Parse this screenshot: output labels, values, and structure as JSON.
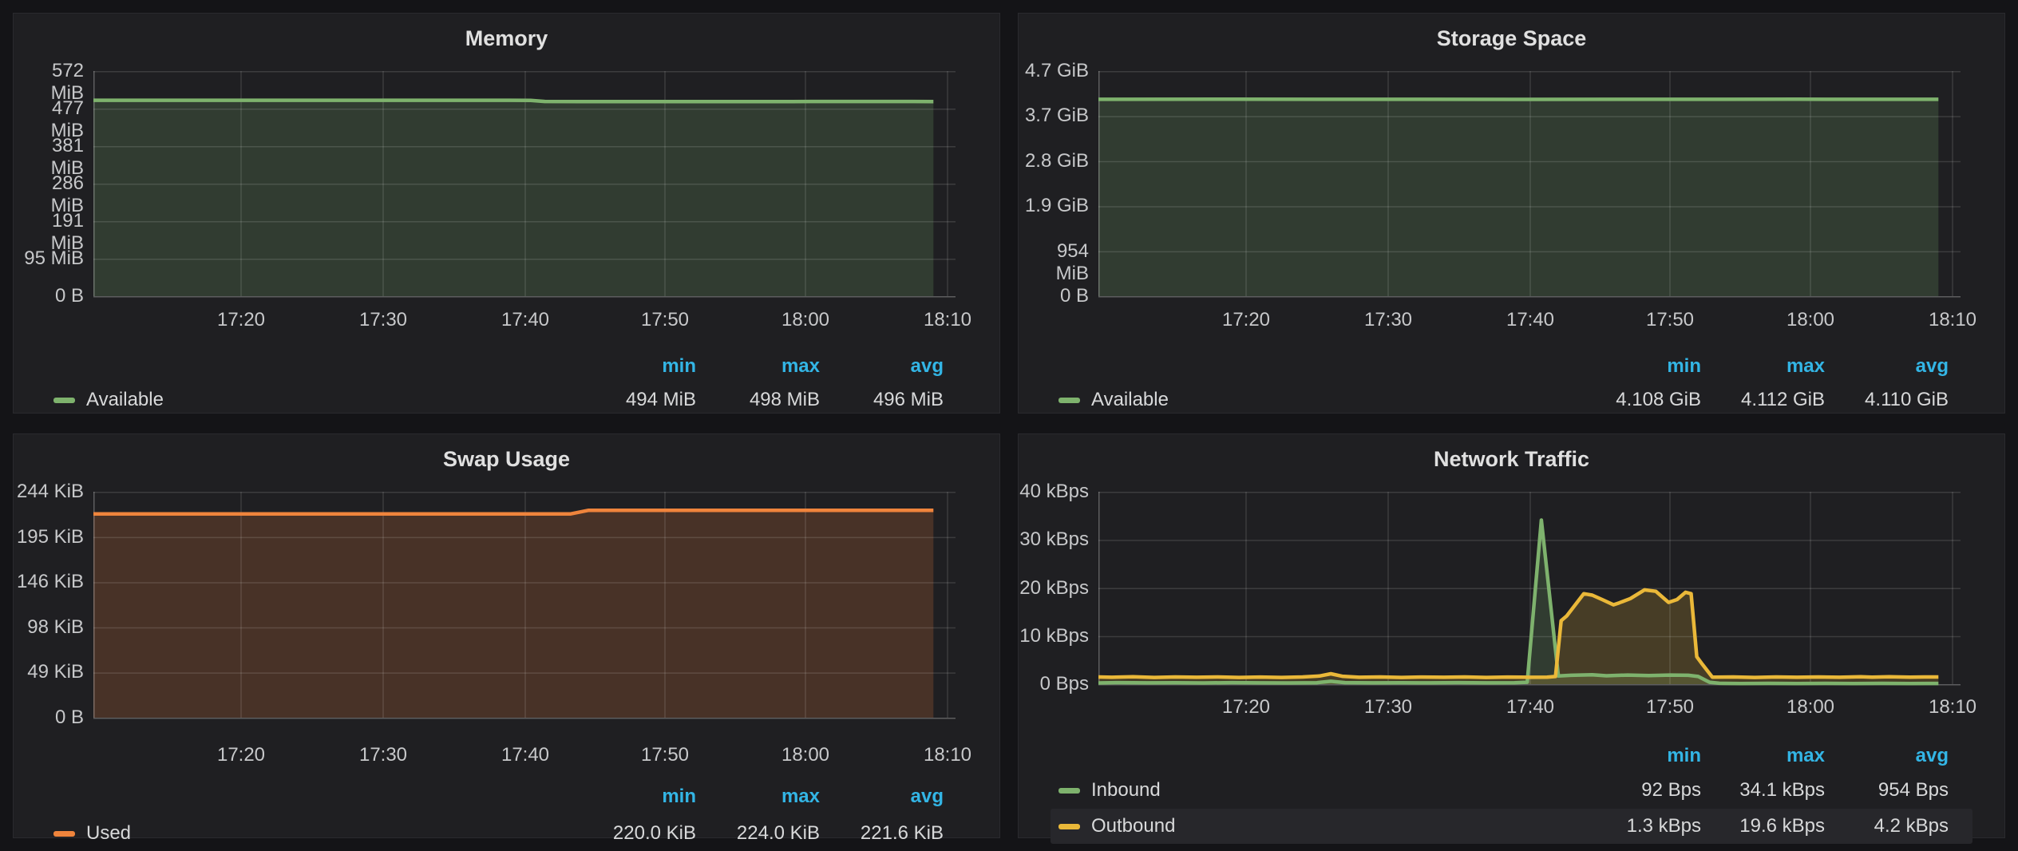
{
  "stats_header": [
    "min",
    "max",
    "avg"
  ],
  "colors": {
    "green": "#7eb26d",
    "orange": "#ef843c",
    "yellow": "#eab839",
    "header_blue": "#33b5e5",
    "panel_bg": "#1f1f22",
    "page_bg": "#141417",
    "axis_text": "#c7c8ca",
    "value_text": "#d8d9da"
  },
  "x_ticks": [
    "17:20",
    "17:30",
    "17:40",
    "17:50",
    "18:00",
    "18:10"
  ],
  "chart_data": [
    {
      "type": "area",
      "title": "Memory",
      "ylabel": "bytes",
      "ylim": [
        0,
        572
      ],
      "y_tick_labels": [
        "572 MiB",
        "477 MiB",
        "381 MiB",
        "286 MiB",
        "191 MiB",
        "95 MiB",
        "0 B"
      ],
      "x_tick_labels": [
        "17:20",
        "17:30",
        "17:40",
        "17:50",
        "18:00",
        "18:10"
      ],
      "legend_position": "bottom-left",
      "grid": true,
      "series": [
        {
          "name": "Available",
          "color": "#7eb26d",
          "unit": "MiB",
          "min": "494 MiB",
          "max": "498 MiB",
          "avg": "496 MiB",
          "highlight": false,
          "points": [
            [
              0,
              497.8
            ],
            [
              5,
              497.8
            ],
            [
              10,
              497.7
            ],
            [
              15,
              497.8
            ],
            [
              20,
              497.8
            ],
            [
              25,
              497.7
            ],
            [
              30,
              497.8
            ],
            [
              31.5,
              497.6
            ],
            [
              32.5,
              494.8
            ],
            [
              35,
              494.6
            ],
            [
              40,
              494.5
            ],
            [
              45,
              494.6
            ],
            [
              50,
              494.5
            ],
            [
              55,
              494.7
            ],
            [
              60,
              494.6
            ]
          ]
        }
      ]
    },
    {
      "type": "area",
      "title": "Storage Space",
      "ylabel": "bytes",
      "ylim": [
        0,
        4.7
      ],
      "y_tick_labels": [
        "4.7 GiB",
        "3.7 GiB",
        "2.8 GiB",
        "1.9 GiB",
        "954 MiB",
        "0 B"
      ],
      "x_tick_labels": [
        "17:20",
        "17:30",
        "17:40",
        "17:50",
        "18:00",
        "18:10"
      ],
      "legend_position": "bottom-left",
      "grid": true,
      "series": [
        {
          "name": "Available",
          "color": "#7eb26d",
          "unit": "GiB",
          "min": "4.108 GiB",
          "max": "4.112 GiB",
          "avg": "4.110 GiB",
          "highlight": false,
          "points": [
            [
              0,
              4.11
            ],
            [
              10,
              4.111
            ],
            [
              20,
              4.11
            ],
            [
              30,
              4.109
            ],
            [
              40,
              4.11
            ],
            [
              50,
              4.111
            ],
            [
              60,
              4.11
            ]
          ]
        }
      ]
    },
    {
      "type": "area",
      "title": "Swap Usage",
      "ylabel": "bytes",
      "ylim": [
        0,
        244
      ],
      "y_tick_labels": [
        "244 KiB",
        "195 KiB",
        "146 KiB",
        "98 KiB",
        "49 KiB",
        "0 B"
      ],
      "x_tick_labels": [
        "17:20",
        "17:30",
        "17:40",
        "17:50",
        "18:00",
        "18:10"
      ],
      "legend_position": "bottom-left",
      "grid": true,
      "series": [
        {
          "name": "Used",
          "color": "#ef843c",
          "unit": "KiB",
          "min": "220.0 KiB",
          "max": "224.0 KiB",
          "avg": "221.6 KiB",
          "highlight": false,
          "points": [
            [
              0,
              220
            ],
            [
              10,
              220
            ],
            [
              20,
              220
            ],
            [
              30,
              220
            ],
            [
              34.3,
              220
            ],
            [
              35.6,
              224
            ],
            [
              40,
              224
            ],
            [
              50,
              224
            ],
            [
              60,
              224
            ]
          ]
        }
      ]
    },
    {
      "type": "area",
      "title": "Network Traffic",
      "ylabel": "Bps",
      "ylim": [
        0,
        40
      ],
      "y_tick_labels": [
        "40 kBps",
        "30 kBps",
        "20 kBps",
        "10 kBps",
        "0 Bps"
      ],
      "x_tick_labels": [
        "17:20",
        "17:30",
        "17:40",
        "17:50",
        "18:00",
        "18:10"
      ],
      "legend_position": "bottom-left",
      "grid": true,
      "series": [
        {
          "name": "Inbound",
          "color": "#7eb26d",
          "unit": "kBps",
          "min": "92 Bps",
          "max": "34.1 kBps",
          "avg": "954 Bps",
          "highlight": false,
          "points": [
            [
              0,
              0.25
            ],
            [
              2,
              0.32
            ],
            [
              4,
              0.26
            ],
            [
              6,
              0.3
            ],
            [
              8,
              0.25
            ],
            [
              10,
              0.32
            ],
            [
              12,
              0.27
            ],
            [
              14,
              0.25
            ],
            [
              16,
              0.3
            ],
            [
              17,
              0.6
            ],
            [
              18,
              0.32
            ],
            [
              20,
              0.26
            ],
            [
              22,
              0.3
            ],
            [
              24,
              0.27
            ],
            [
              26,
              0.32
            ],
            [
              28,
              0.26
            ],
            [
              30,
              0.3
            ],
            [
              30.9,
              0.4
            ],
            [
              31.9,
              34.1
            ],
            [
              33.1,
              1.7
            ],
            [
              34,
              1.85
            ],
            [
              35.5,
              1.95
            ],
            [
              36.5,
              1.75
            ],
            [
              38,
              1.9
            ],
            [
              39.5,
              1.8
            ],
            [
              41,
              1.9
            ],
            [
              42.3,
              1.85
            ],
            [
              43,
              1.6
            ],
            [
              43.8,
              0.4
            ],
            [
              44.5,
              0.18
            ],
            [
              46,
              0.14
            ],
            [
              48,
              0.17
            ],
            [
              50,
              0.14
            ],
            [
              52,
              0.17
            ],
            [
              54,
              0.14
            ],
            [
              56,
              0.17
            ],
            [
              58,
              0.14
            ],
            [
              60,
              0.15
            ]
          ]
        },
        {
          "name": "Outbound",
          "color": "#eab839",
          "unit": "kBps",
          "min": "1.3 kBps",
          "max": "19.6 kBps",
          "avg": "4.2 kBps",
          "highlight": true,
          "points": [
            [
              0,
              1.5
            ],
            [
              1.5,
              1.42
            ],
            [
              3,
              1.52
            ],
            [
              4.5,
              1.4
            ],
            [
              6,
              1.5
            ],
            [
              7.5,
              1.42
            ],
            [
              9,
              1.5
            ],
            [
              10.5,
              1.4
            ],
            [
              12,
              1.48
            ],
            [
              13.5,
              1.4
            ],
            [
              15,
              1.5
            ],
            [
              16.2,
              1.7
            ],
            [
              17,
              2.15
            ],
            [
              17.8,
              1.65
            ],
            [
              19,
              1.42
            ],
            [
              20.5,
              1.5
            ],
            [
              22,
              1.4
            ],
            [
              23.5,
              1.48
            ],
            [
              25,
              1.42
            ],
            [
              26.5,
              1.5
            ],
            [
              28,
              1.4
            ],
            [
              29.5,
              1.48
            ],
            [
              31,
              1.42
            ],
            [
              32.3,
              1.45
            ],
            [
              32.9,
              1.6
            ],
            [
              33.3,
              13.2
            ],
            [
              33.7,
              14.2
            ],
            [
              34.9,
              18.8
            ],
            [
              35.5,
              18.5
            ],
            [
              36.2,
              17.6
            ],
            [
              37,
              16.5
            ],
            [
              37.4,
              16.9
            ],
            [
              38.2,
              17.8
            ],
            [
              39.2,
              19.6
            ],
            [
              40,
              19.3
            ],
            [
              40.9,
              17.0
            ],
            [
              41.5,
              17.6
            ],
            [
              42.1,
              19.1
            ],
            [
              42.5,
              18.8
            ],
            [
              42.9,
              5.7
            ],
            [
              43.3,
              4.1
            ],
            [
              44,
              1.45
            ],
            [
              45.5,
              1.5
            ],
            [
              47,
              1.4
            ],
            [
              48.5,
              1.5
            ],
            [
              50,
              1.42
            ],
            [
              51.5,
              1.5
            ],
            [
              53,
              1.42
            ],
            [
              54.5,
              1.55
            ],
            [
              55.3,
              1.45
            ],
            [
              56.5,
              1.52
            ],
            [
              58,
              1.44
            ],
            [
              59,
              1.5
            ],
            [
              60,
              1.5
            ]
          ]
        }
      ]
    }
  ]
}
